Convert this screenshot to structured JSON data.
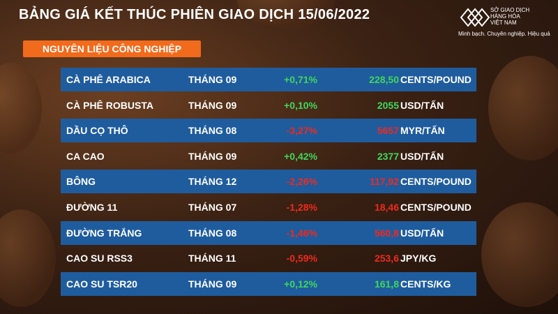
{
  "header": {
    "title": "BẢNG GIÁ KẾT THÚC PHIÊN GIAO DỊCH 15/06/2022",
    "logo": {
      "line1": "SỞ GIAO DỊCH",
      "line2": "HÀNG HÓA",
      "line3": "VIỆT NAM",
      "tagline": "Minh bạch. Chuyên nghiệp. Hiệu quả"
    }
  },
  "section": "NGUYÊN LIỆU CÔNG NGHIỆP",
  "table": {
    "rows": [
      [
        "CÀ PHÊ ARABICA",
        "THÁNG 09",
        "+0,71%",
        "228,50",
        "CENTS/POUND"
      ],
      [
        "CÀ PHÊ ROBUSTA",
        "THÁNG 09",
        "+0,10%",
        "2055",
        "USD/TẤN"
      ],
      [
        "DẦU CỌ THÔ",
        "THÁNG 08",
        "-3,27%",
        "5657",
        "MYR/TẤN"
      ],
      [
        "CA CAO",
        "THÁNG 09",
        "+0,42%",
        "2377",
        "USD/TẤN"
      ],
      [
        "BÔNG",
        "THÁNG 12",
        "-2,26%",
        "117,92",
        "CENTS/POUND"
      ],
      [
        "ĐƯỜNG 11",
        "THÁNG 07",
        "-1,28%",
        "18,46",
        "CENTS/POUND"
      ],
      [
        "ĐƯỜNG TRẮNG",
        "THÁNG 08",
        "-1,46%",
        "560,8",
        "USD/TẤN"
      ],
      [
        "CAO SU RSS3",
        "THÁNG 11",
        "-0,59%",
        "253,6",
        "JPY/KG"
      ],
      [
        "CAO SU TSR20",
        "THÁNG 09",
        "+0,12%",
        "161,8",
        "CENTS/KG"
      ]
    ]
  }
}
